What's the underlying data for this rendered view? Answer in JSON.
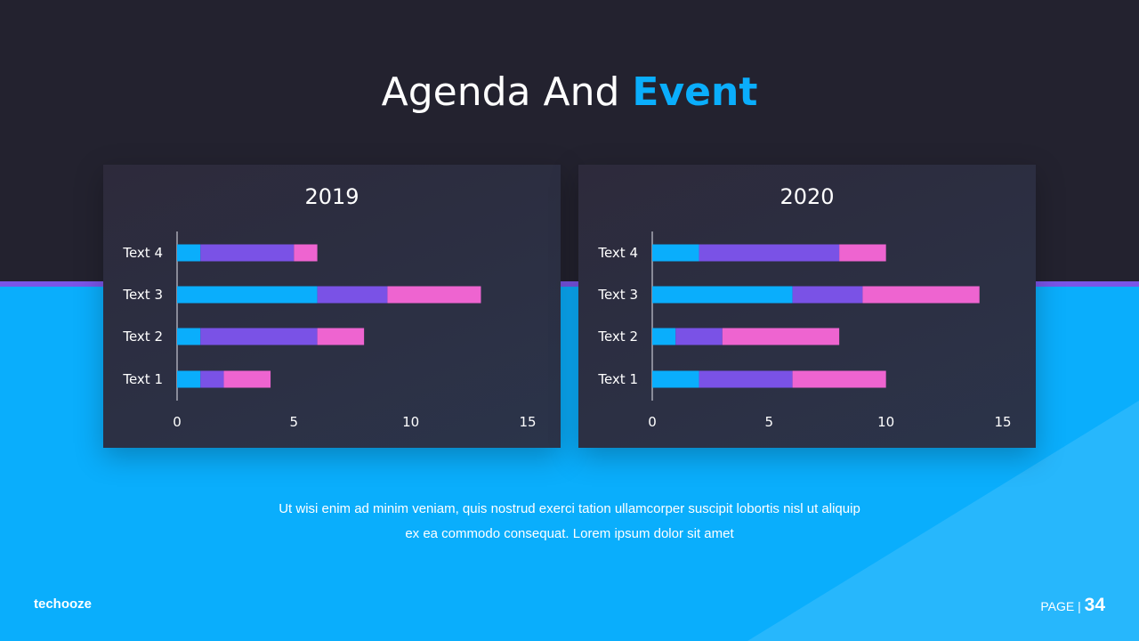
{
  "title": {
    "main": "Agenda And",
    "accent": "Event"
  },
  "description": {
    "line1": "Ut wisi enim ad minim veniam, quis nostrud exerci tation ullamcorper suscipit lobortis nisl ut aliquip",
    "line2": "ex ea commodo consequat. Lorem ipsum dolor sit amet"
  },
  "footer": {
    "brand": "techooze",
    "page_label": "PAGE",
    "separator": "|",
    "page_number": "34"
  },
  "colors": {
    "series": [
      "#0aaefc",
      "#7a52e6",
      "#ee64d0"
    ]
  },
  "chart_data": [
    {
      "type": "bar",
      "stacked": true,
      "orientation": "horizontal",
      "title": "2019",
      "categories": [
        "Text 1",
        "Text 2",
        "Text 3",
        "Text 4"
      ],
      "series": [
        {
          "values": [
            1,
            1,
            6,
            1
          ],
          "color": "#0aaefc"
        },
        {
          "values": [
            1,
            5,
            3,
            4
          ],
          "color": "#7a52e6"
        },
        {
          "values": [
            2,
            2,
            4,
            1
          ],
          "color": "#ee64d0"
        }
      ],
      "xlim": [
        0,
        15
      ],
      "xticks": [
        "0",
        "5",
        "10",
        "15"
      ],
      "grid": false
    },
    {
      "type": "bar",
      "stacked": true,
      "orientation": "horizontal",
      "title": "2020",
      "categories": [
        "Text 1",
        "Text 2",
        "Text 3",
        "Text 4"
      ],
      "series": [
        {
          "values": [
            2,
            1,
            6,
            2
          ],
          "color": "#0aaefc"
        },
        {
          "values": [
            4,
            2,
            3,
            6
          ],
          "color": "#7a52e6"
        },
        {
          "values": [
            4,
            5,
            5,
            2
          ],
          "color": "#ee64d0"
        }
      ],
      "xlim": [
        0,
        15
      ],
      "xticks": [
        "0",
        "5",
        "10",
        "15"
      ],
      "grid": false
    }
  ]
}
